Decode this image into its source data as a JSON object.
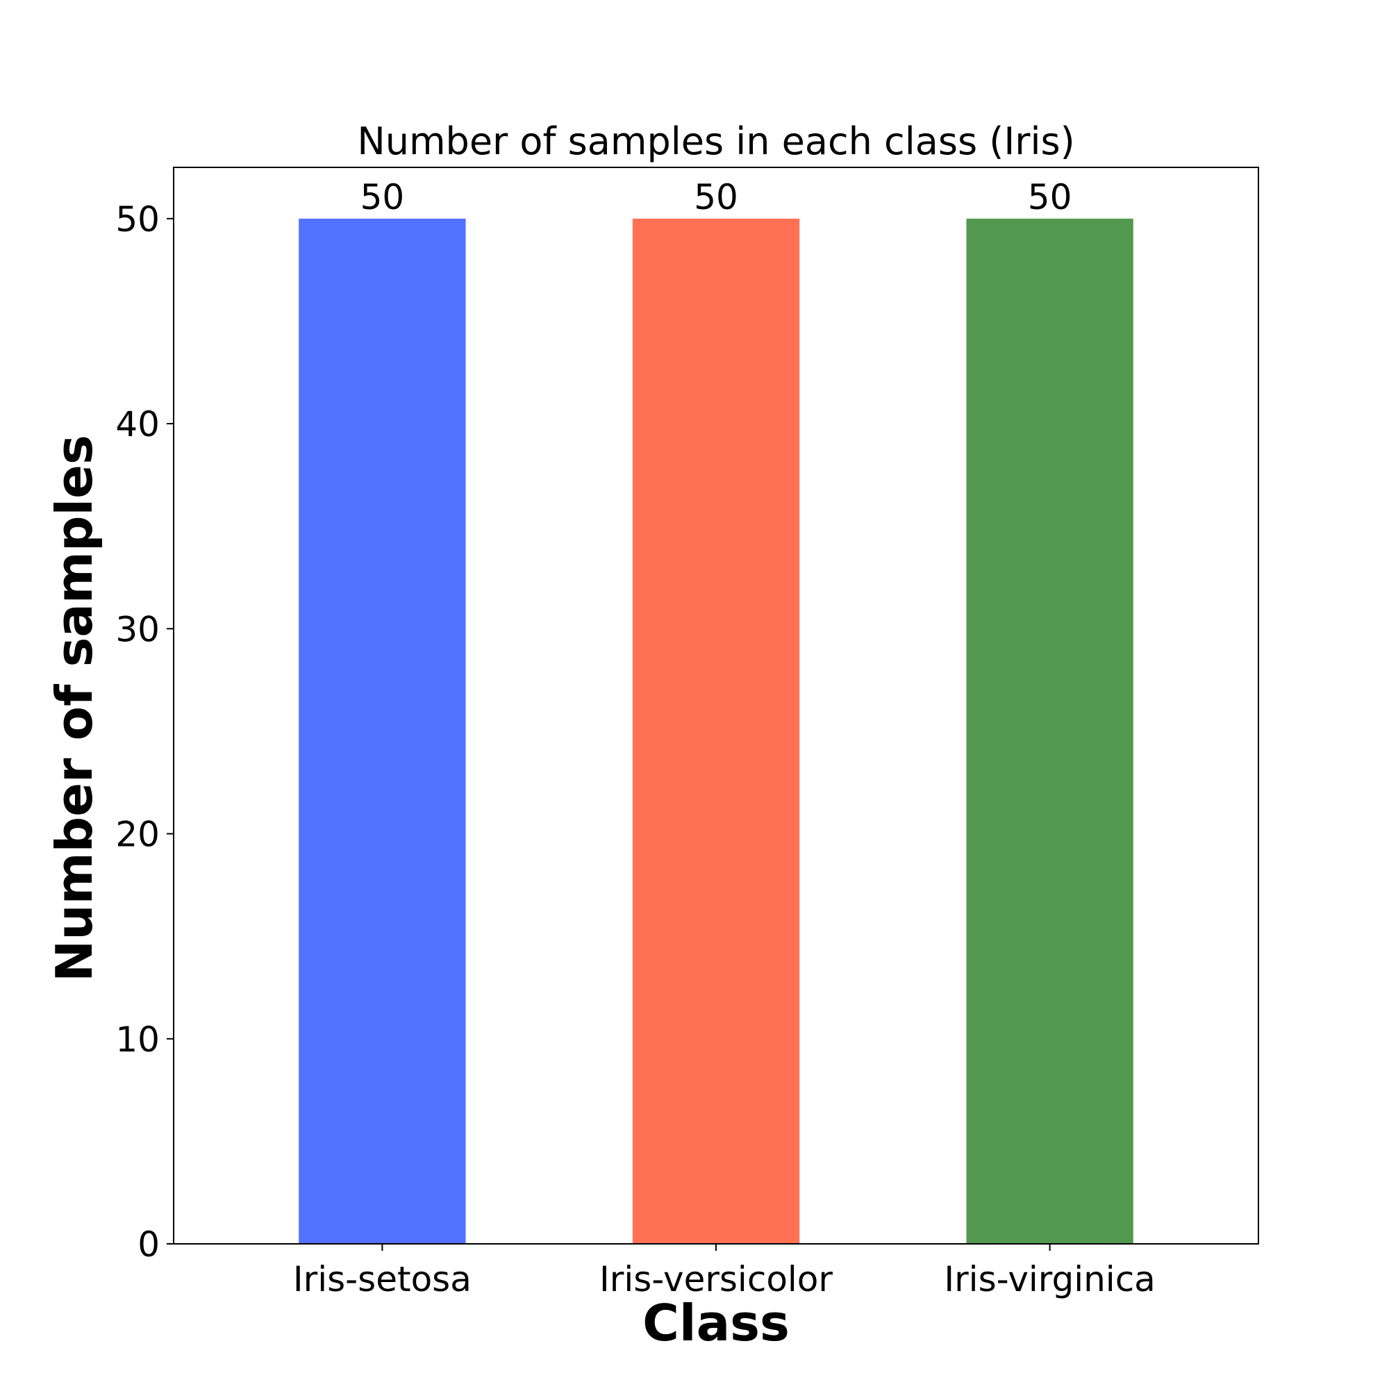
{
  "chart_data": {
    "type": "bar",
    "title": "Number of samples in each class (Iris)",
    "xlabel": "Class",
    "ylabel": "Number of samples",
    "categories": [
      "Iris-setosa",
      "Iris-versicolor",
      "Iris-virginica"
    ],
    "values": [
      50,
      50,
      50
    ],
    "data_labels": [
      "50",
      "50",
      "50"
    ],
    "colors": [
      "#5271ff",
      "#ff7152",
      "#52994f"
    ],
    "yticks": [
      0,
      10,
      20,
      30,
      40,
      50
    ],
    "ylim": [
      0,
      52.5
    ],
    "grid": false,
    "legend": "none"
  }
}
